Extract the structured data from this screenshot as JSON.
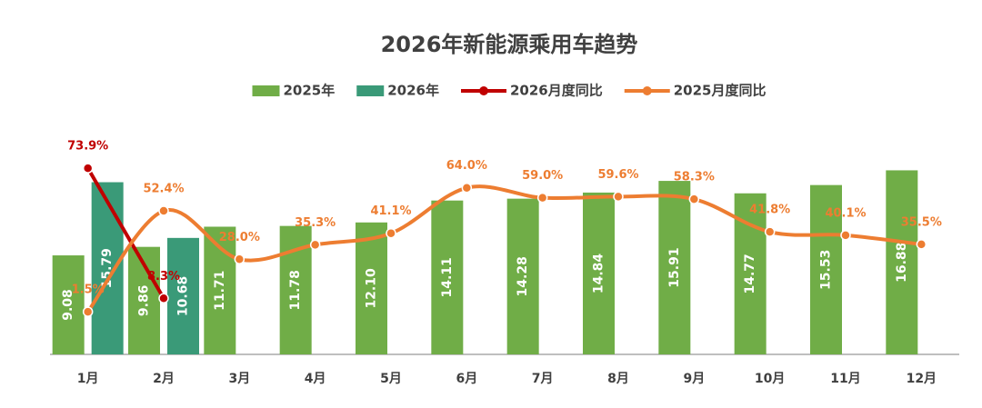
{
  "chart_data": {
    "type": "bar",
    "title": "2026年新能源乘用车趋势",
    "categories": [
      "1月",
      "2月",
      "3月",
      "4月",
      "5月",
      "6月",
      "7月",
      "8月",
      "9月",
      "10月",
      "11月",
      "12月"
    ],
    "ylim": [
      0,
      20
    ],
    "y2lim": [
      -20,
      90
    ],
    "legend": "top",
    "series": [
      {
        "name": "2025年",
        "type": "bar",
        "color": "#70ad47",
        "values": [
          9.08,
          9.86,
          11.71,
          11.78,
          12.1,
          14.11,
          14.28,
          14.84,
          15.91,
          14.77,
          15.53,
          16.88
        ],
        "value_labels": [
          "9.08",
          "9.86",
          "11.71",
          "11.78",
          "12.10",
          "14.11",
          "14.28",
          "14.84",
          "15.91",
          "14.77",
          "15.53",
          "16.88"
        ]
      },
      {
        "name": "2026年",
        "type": "bar",
        "color": "#3a9a78",
        "values": [
          15.79,
          10.68,
          null,
          null,
          null,
          null,
          null,
          null,
          null,
          null,
          null,
          null
        ],
        "value_labels": [
          "15.79",
          "10.68",
          null,
          null,
          null,
          null,
          null,
          null,
          null,
          null,
          null,
          null
        ]
      },
      {
        "name": "2026月度同比",
        "type": "line",
        "axis": "y2",
        "color": "#c00000",
        "smooth": false,
        "values": [
          73.9,
          8.3,
          null,
          null,
          null,
          null,
          null,
          null,
          null,
          null,
          null,
          null
        ],
        "value_labels": [
          "73.9%",
          "8.3%",
          null,
          null,
          null,
          null,
          null,
          null,
          null,
          null,
          null,
          null
        ]
      },
      {
        "name": "2025月度同比",
        "type": "line",
        "axis": "y2",
        "color": "#ed7d31",
        "smooth": true,
        "values": [
          1.5,
          52.4,
          28.0,
          35.3,
          41.1,
          64.0,
          59.0,
          59.6,
          58.3,
          41.8,
          40.1,
          35.5
        ],
        "value_labels": [
          "1.5%",
          "52.4%",
          "28.0%",
          "35.3%",
          "41.1%",
          "64.0%",
          "59.0%",
          "59.6%",
          "58.3%",
          "41.8%",
          "40.1%",
          "35.5%"
        ]
      }
    ]
  }
}
